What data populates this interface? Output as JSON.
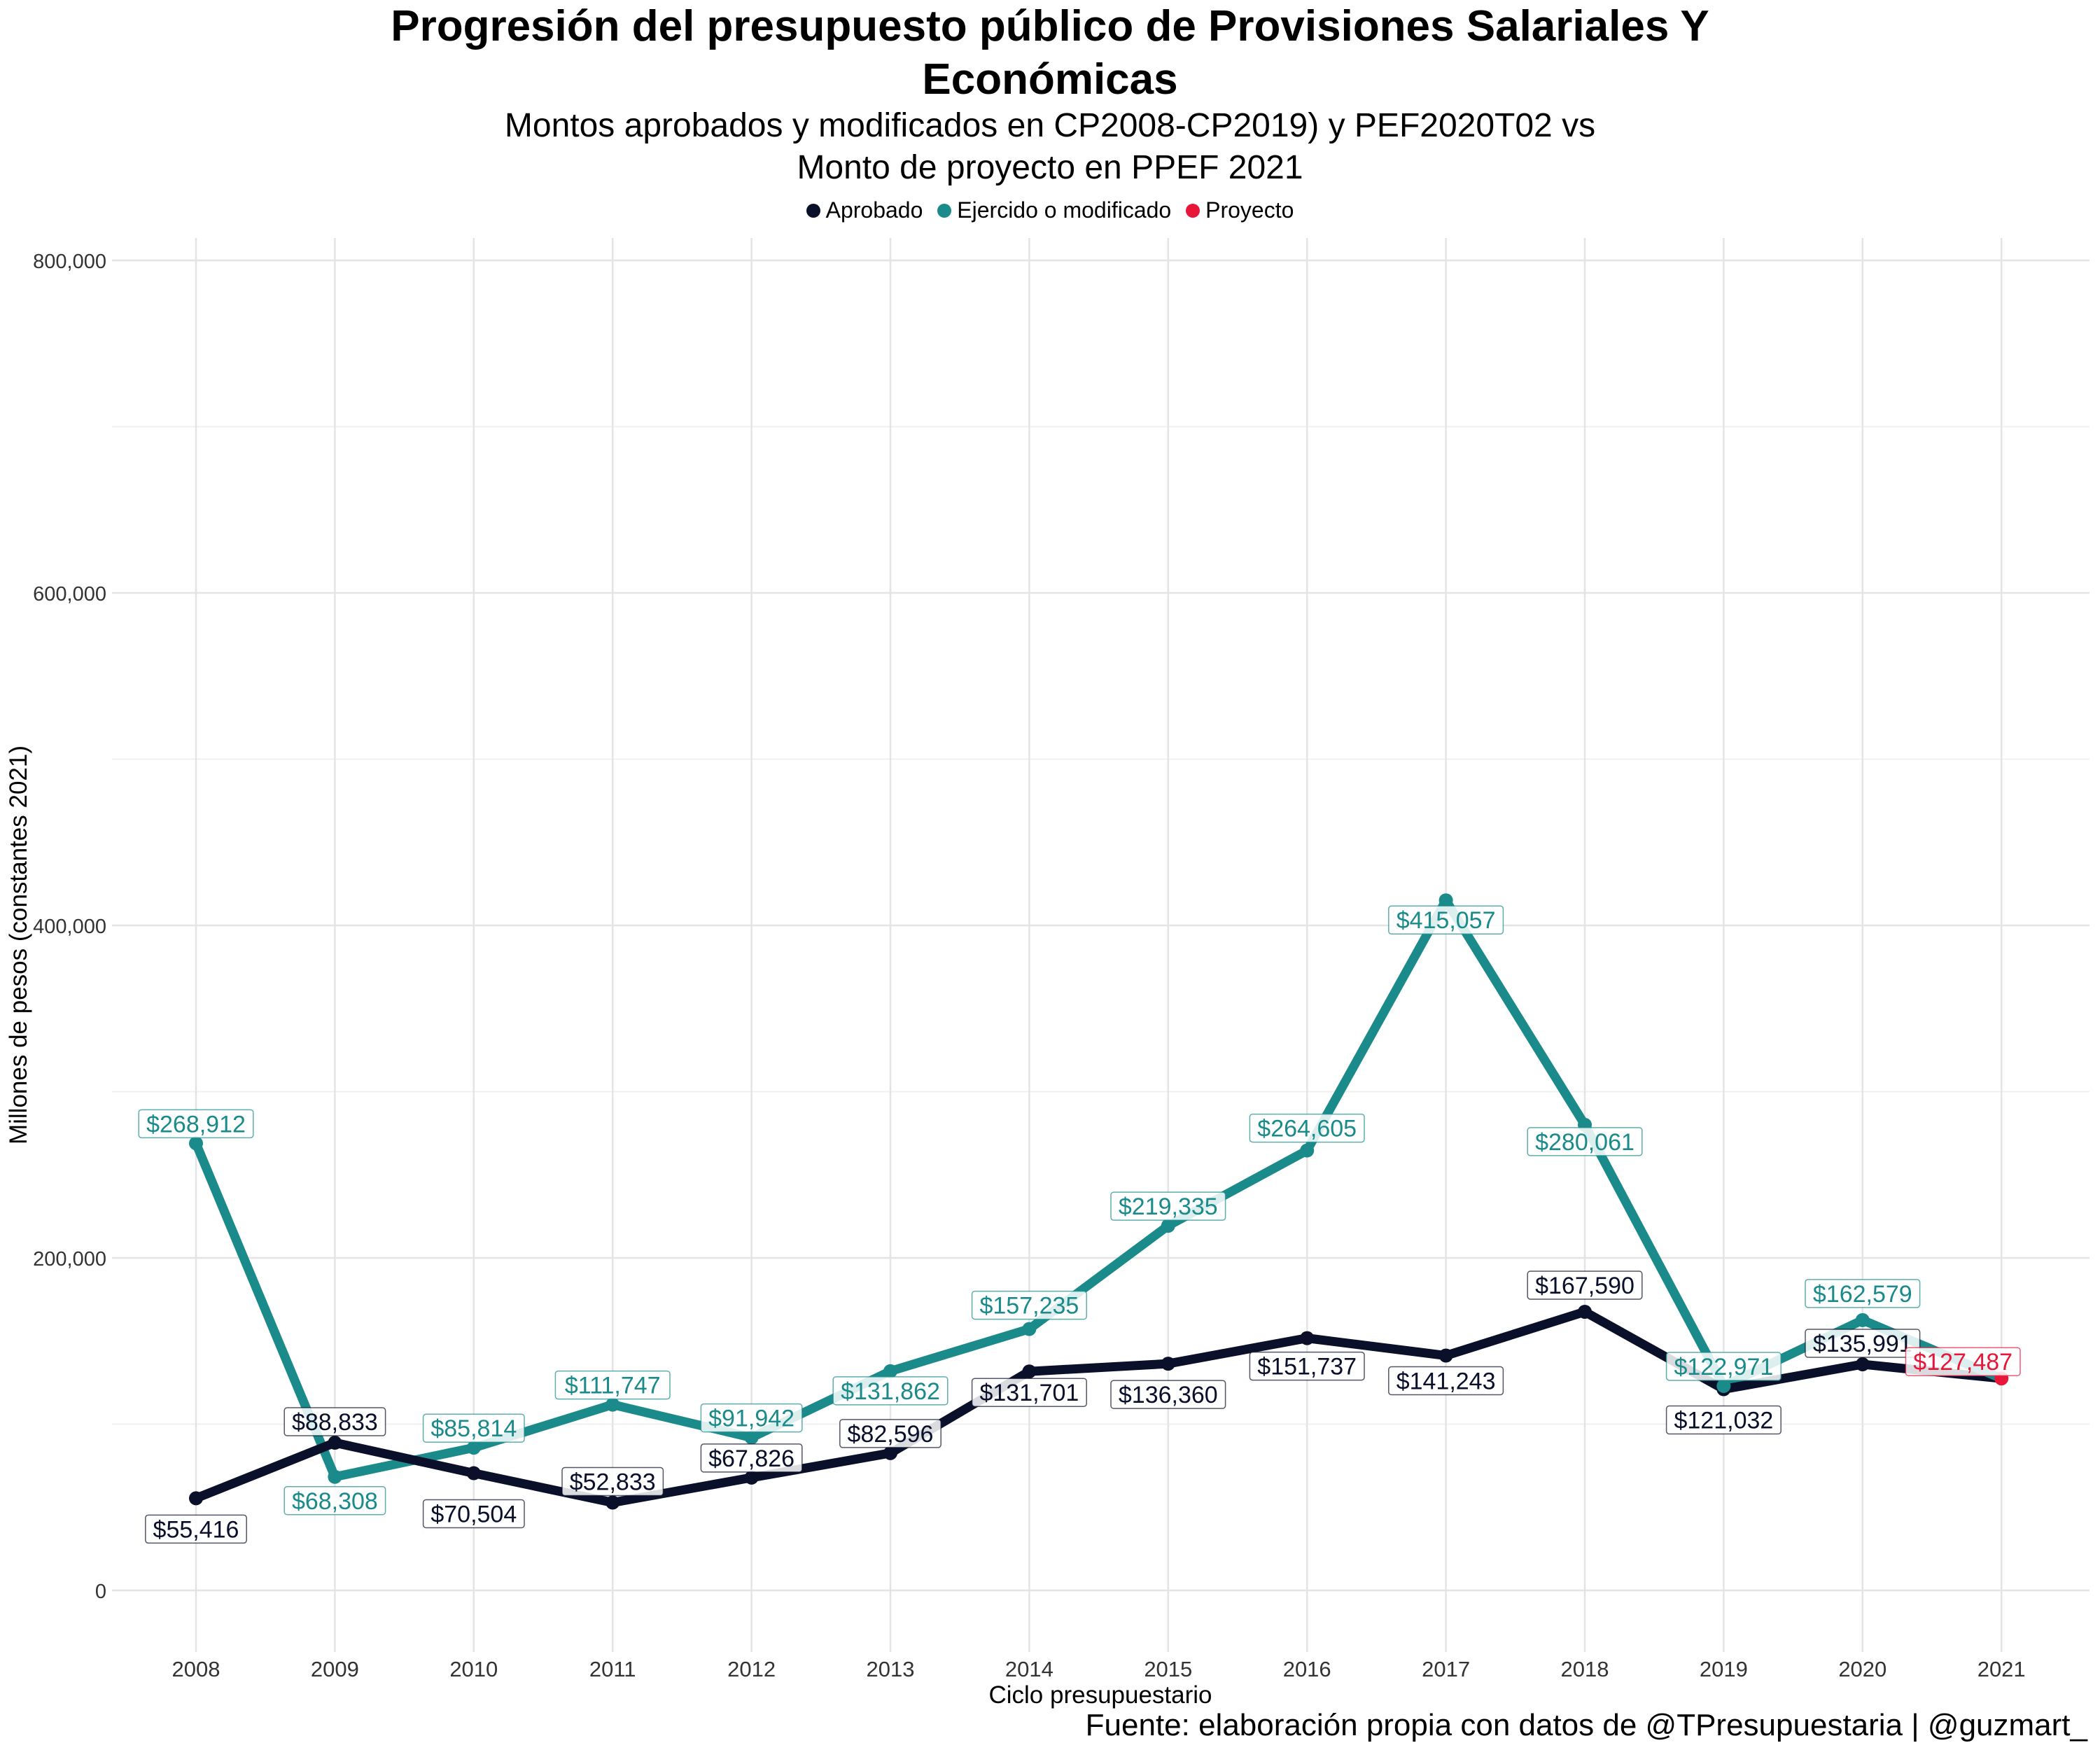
{
  "title_line1": "Progresión del presupuesto público de Provisiones Salariales Y",
  "title_line2": "Económicas",
  "subtitle_line1": "Montos aprobados y modificados en CP2008-CP2019) y PEF2020T02 vs",
  "subtitle_line2": "Monto de proyecto en PPEF 2021",
  "source": "Fuente: elaboración propia con datos de @TPresupuestaria | @guzmart_",
  "chart_data": {
    "type": "line",
    "xlabel": "Ciclo presupuestario",
    "ylabel": "Millones de pesos (constantes 2021)",
    "ylim": [
      0,
      800000
    ],
    "yticks": [
      0,
      200000,
      400000,
      600000,
      800000
    ],
    "ytick_labels": [
      "0",
      "200,000",
      "400,000",
      "600,000",
      "800,000"
    ],
    "x": [
      "2008",
      "2009",
      "2010",
      "2011",
      "2012",
      "2013",
      "2014",
      "2015",
      "2016",
      "2017",
      "2018",
      "2019",
      "2020",
      "2021"
    ],
    "grid": true,
    "legend_position": "top",
    "series": [
      {
        "name": "Aprobado",
        "color": "#0a0f2a",
        "values": [
          55416,
          88833,
          70504,
          52833,
          67826,
          82596,
          131701,
          136360,
          151737,
          141243,
          167590,
          121032,
          135991,
          null
        ],
        "labels": [
          "$55,416",
          "$88,833",
          "$70,504",
          "$52,833",
          "$67,826",
          "$82,596",
          "$131,701",
          "$136,360",
          "$151,737",
          "$141,243",
          "$167,590",
          "$121,032",
          "$135,991",
          null
        ]
      },
      {
        "name": "Ejercido o modificado",
        "color": "#1a8b8a",
        "values": [
          268912,
          68308,
          85814,
          111747,
          91942,
          131862,
          157235,
          219335,
          264605,
          415057,
          280061,
          122971,
          162579,
          null
        ],
        "labels": [
          "$268,912",
          "$68,308",
          "$85,814",
          "$111,747",
          "$91,942",
          "$131,862",
          "$157,235",
          "$219,335",
          "$264,605",
          "$415,057",
          "$280,061",
          "$122,971",
          "$162,579",
          null
        ]
      },
      {
        "name": "Proyecto",
        "color": "#e8173a",
        "values": [
          null,
          null,
          null,
          null,
          null,
          null,
          null,
          null,
          null,
          null,
          null,
          null,
          null,
          127487
        ],
        "labels": [
          null,
          null,
          null,
          null,
          null,
          null,
          null,
          null,
          null,
          null,
          null,
          null,
          null,
          "$127,487"
        ]
      }
    ]
  }
}
